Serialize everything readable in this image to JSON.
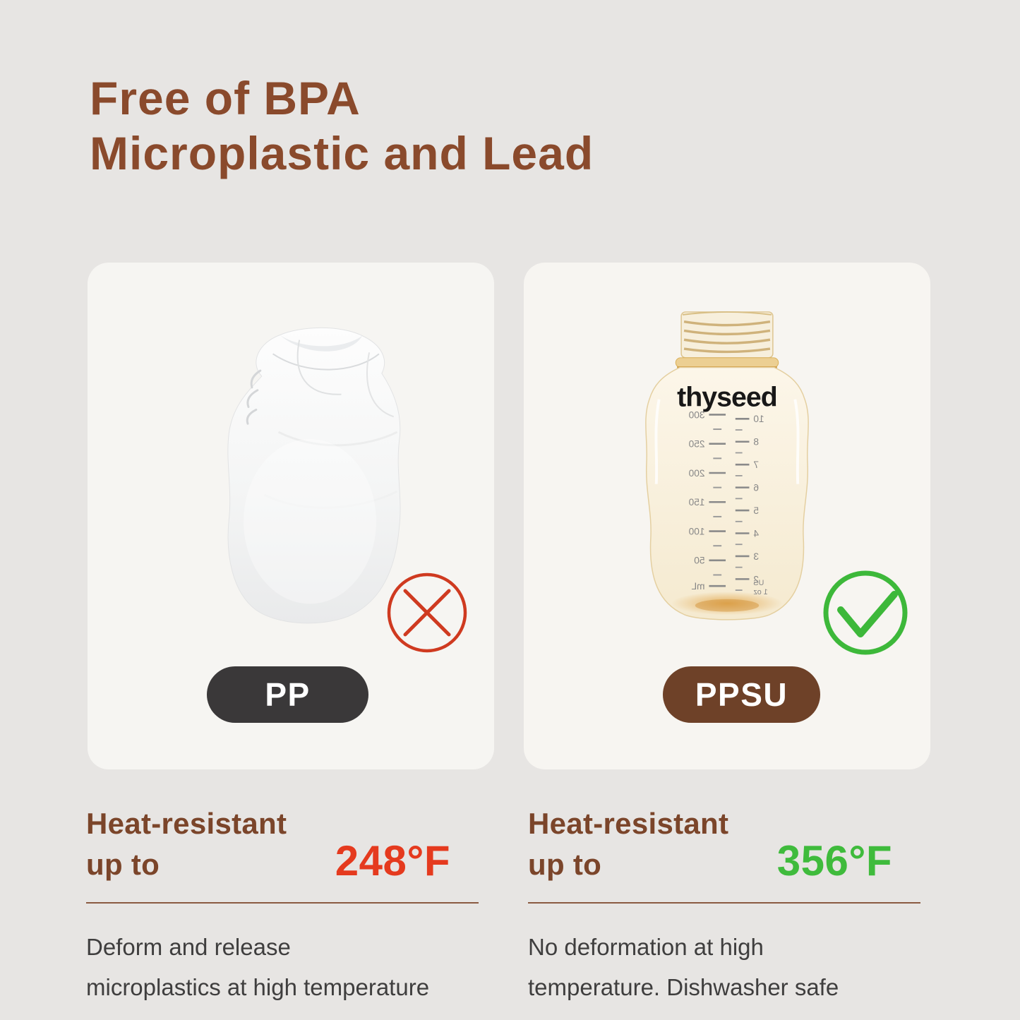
{
  "page": {
    "background_color": "#e7e5e3",
    "card_color": "#f6f5f2"
  },
  "title": {
    "line1": "Free of BPA",
    "line2": "Microplastic and Lead",
    "color": "#8a4a2c"
  },
  "left_card": {
    "badge": "PP",
    "badge_color": "#3a3839",
    "verdict_icon": "cross-icon",
    "verdict_color": "#cf3a20",
    "heading_line1": "Heat-resistant",
    "heading_line2": "up to",
    "temperature": "248°F",
    "temperature_color": "#e53a1e",
    "description_line1": "Deform and release",
    "description_line2": "microplastics at high temperature"
  },
  "right_card": {
    "badge": "PPSU",
    "badge_color": "#6e4128",
    "verdict_icon": "check-icon",
    "verdict_color": "#3db83a",
    "bottle_logo": "thyseed",
    "scale_ml": [
      "300",
      "250",
      "200",
      "150",
      "100",
      "50"
    ],
    "scale_ml_unit": "mL",
    "scale_oz": [
      "10",
      "8",
      "7",
      "6",
      "5",
      "4",
      "3",
      "2"
    ],
    "scale_oz_unit_line1": "US",
    "scale_oz_unit_line2": "1 oz",
    "heading_line1": "Heat-resistant",
    "heading_line2": "up to",
    "temperature": "356°F",
    "temperature_color": "#3fbb3c",
    "description_line1": "No deformation at high",
    "description_line2": "temperature. Dishwasher safe"
  }
}
